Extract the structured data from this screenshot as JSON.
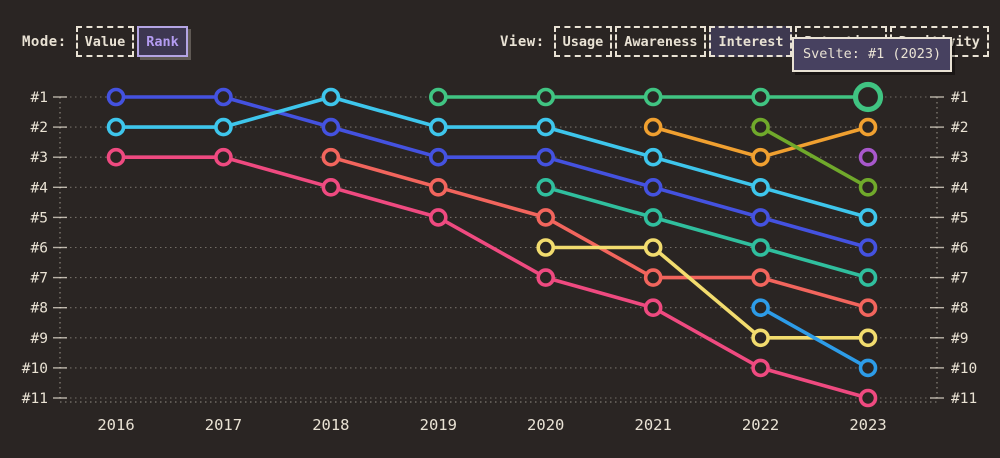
{
  "theme": {
    "background": "#2a2523",
    "text": "#e9e2d4",
    "grid": "#e9e2d4",
    "tooltip_bg": "#474160",
    "selected_bg": "#3e3950",
    "mode_selected_text": "#b49cf2",
    "mode_selected_border": "#b4a5e4"
  },
  "header": {
    "mode": {
      "label": "Mode:",
      "options": [
        {
          "label": "Value",
          "selected": false
        },
        {
          "label": "Rank",
          "selected": true
        }
      ]
    },
    "view": {
      "label": "View:",
      "options": [
        {
          "label": "Usage",
          "selected": false
        },
        {
          "label": "Awareness",
          "selected": false
        },
        {
          "label": "Interest",
          "selected": true
        },
        {
          "label": "Retention",
          "selected": false
        },
        {
          "label": "Positivity",
          "selected": false
        }
      ]
    }
  },
  "tooltip": {
    "text": "Svelte: #1 (2023)"
  },
  "chart_data": {
    "type": "line",
    "variant": "bump-rank-chart",
    "title": "",
    "xlabel": "",
    "ylabel": "",
    "x": [
      2016,
      2017,
      2018,
      2019,
      2020,
      2021,
      2022,
      2023
    ],
    "y_axis_labels": [
      "#1",
      "#2",
      "#3",
      "#4",
      "#5",
      "#6",
      "#7",
      "#8",
      "#9",
      "#10",
      "#11"
    ],
    "y_axis_sides": "both",
    "grid": "horizontal dotted",
    "legend": "none",
    "series": [
      {
        "name": "blue",
        "color": "#4452e0",
        "ranks": [
          1,
          1,
          2,
          3,
          3,
          4,
          5,
          6
        ]
      },
      {
        "name": "cyan",
        "color": "#3ec6ec",
        "ranks": [
          2,
          2,
          1,
          2,
          2,
          3,
          4,
          5
        ]
      },
      {
        "name": "pink",
        "color": "#ef4a80",
        "ranks": [
          3,
          3,
          4,
          5,
          7,
          8,
          10,
          11
        ]
      },
      {
        "name": "salmon",
        "color": "#f2655d",
        "ranks": [
          null,
          null,
          3,
          4,
          5,
          7,
          7,
          8
        ]
      },
      {
        "name": "teal",
        "color": "#30bf9e",
        "ranks": [
          null,
          null,
          null,
          null,
          4,
          5,
          6,
          7
        ]
      },
      {
        "name": "yellow",
        "color": "#f2dc6e",
        "ranks": [
          null,
          null,
          null,
          null,
          6,
          6,
          9,
          9
        ]
      },
      {
        "name": "orange",
        "color": "#f0a030",
        "ranks": [
          null,
          null,
          null,
          null,
          null,
          2,
          3,
          2
        ]
      },
      {
        "name": "apple-green",
        "color": "#70a92b",
        "ranks": [
          null,
          null,
          null,
          null,
          null,
          null,
          2,
          4
        ]
      },
      {
        "name": "azure",
        "color": "#2d9ce8",
        "ranks": [
          null,
          null,
          null,
          null,
          null,
          null,
          8,
          10
        ]
      },
      {
        "name": "purple",
        "color": "#a858cc",
        "ranks": [
          null,
          null,
          null,
          null,
          null,
          null,
          null,
          3
        ]
      },
      {
        "name": "Svelte",
        "color": "#40c482",
        "ranks": [
          null,
          null,
          null,
          1,
          1,
          1,
          1,
          1
        ],
        "highlighted_point": {
          "year": 2023,
          "rank": 1
        }
      }
    ]
  }
}
